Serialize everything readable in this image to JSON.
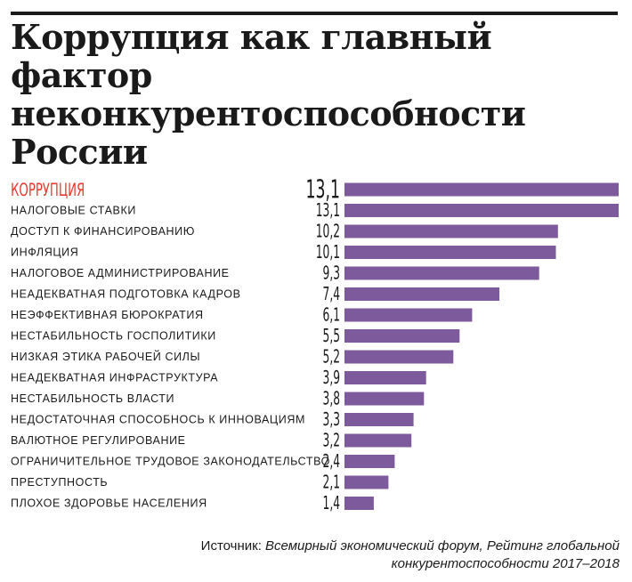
{
  "title": "Коррупция как главный фактор неконкурентоспособности России",
  "source": {
    "label": "Источник:",
    "text": "Всемирный экономический форум, Рейтинг глобальной конкурентоспособности 2017–2018"
  },
  "colors": {
    "bar": "#7d5a9b",
    "highlight_label": "#e63a2e",
    "text": "#1a1a1a"
  },
  "chart_data": {
    "type": "bar",
    "orientation": "horizontal",
    "categories": [
      "КОРРУПЦИЯ",
      "НАЛОГОВЫЕ СТАВКИ",
      "ДОСТУП К ФИНАНСИРОВАНИЮ",
      "ИНФЛЯЦИЯ",
      "НАЛОГОВОЕ АДМИНИСТРИРОВАНИЕ",
      "НЕАДЕКВАТНАЯ ПОДГОТОВКА КАДРОВ",
      "НЕЭФФЕКТИВНАЯ БЮРОКРАТИЯ",
      "НЕСТАБИЛЬНОСТЬ ГОСПОЛИТИКИ",
      "НИЗКАЯ ЭТИКА РАБОЧЕЙ СИЛЫ",
      "НЕАДЕКВАТНАЯ ИНФРАСТРУКТУРА",
      "НЕСТАБИЛЬНОСТЬ ВЛАСТИ",
      "НЕДОСТАТОЧНАЯ СПОСОБНОСЬ К ИННОВАЦИЯМ",
      "ВАЛЮТНОЕ РЕГУЛИРОВАНИЕ",
      "ОГРАНИЧИТЕЛЬНОЕ ТРУДОВОЕ ЗАКОНОДАТЕЛЬСТВО",
      "ПРЕСТУПНОСТЬ",
      "ПЛОХОЕ ЗДОРОВЬЕ НАСЕЛЕНИЯ"
    ],
    "values": [
      13.1,
      13.1,
      10.2,
      10.1,
      9.3,
      7.4,
      6.1,
      5.5,
      5.2,
      3.9,
      3.8,
      3.3,
      3.2,
      2.4,
      2.1,
      1.4
    ],
    "value_labels": [
      "13,1",
      "13,1",
      "10,2",
      "10,1",
      "9,3",
      "7,4",
      "6,1",
      "5,5",
      "5,2",
      "3,9",
      "3,8",
      "3,3",
      "3,2",
      "2,4",
      "2,1",
      "1,4"
    ],
    "highlight_index": 0,
    "xlim": [
      0,
      13.1
    ],
    "grid": false,
    "legend": "none"
  }
}
